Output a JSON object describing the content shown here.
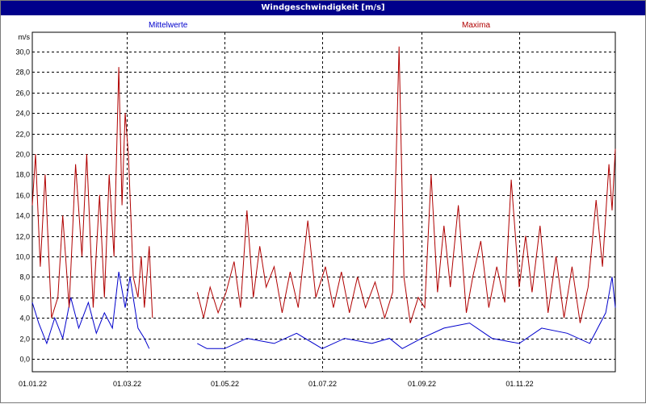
{
  "window": {
    "title": "Windgeschwindigkeit [m/s]"
  },
  "chart_data": {
    "type": "line",
    "title": "Windgeschwindigkeit [m/s]",
    "ylabel": "m/s",
    "ylim": [
      0,
      32
    ],
    "grid": true,
    "legend_placement": "top",
    "xlim": [
      "01.01.22",
      "31.12.22"
    ],
    "x_tick_labels": [
      "01.01.22",
      "01.03.22",
      "01.05.22",
      "01.07.22",
      "01.09.22",
      "01.11.22"
    ],
    "y_tick_labels": [
      "0,0",
      "2,0",
      "4,0",
      "6,0",
      "8,0",
      "10,0",
      "12,0",
      "14,0",
      "16,0",
      "18,0",
      "20,0",
      "22,0",
      "24,0",
      "26,0",
      "28,0",
      "30,0"
    ],
    "gap": [
      "18.03.22",
      "14.04.22"
    ],
    "series": [
      {
        "name": "Mittelwerte",
        "color": "#0000cc",
        "segments": [
          [
            [
              "01.01.22",
              5.5
            ],
            [
              "05.01.22",
              3.5
            ],
            [
              "10.01.22",
              1.5
            ],
            [
              "15.01.22",
              4.0
            ],
            [
              "20.01.22",
              2.0
            ],
            [
              "25.01.22",
              6.0
            ],
            [
              "30.01.22",
              3.0
            ],
            [
              "05.02.22",
              5.5
            ],
            [
              "10.02.22",
              2.5
            ],
            [
              "15.02.22",
              4.5
            ],
            [
              "20.02.22",
              3.0
            ],
            [
              "24.02.22",
              8.5
            ],
            [
              "28.02.22",
              5.0
            ],
            [
              "03.03.22",
              8.0
            ],
            [
              "08.03.22",
              3.0
            ],
            [
              "12.03.22",
              2.0
            ],
            [
              "15.03.22",
              1.0
            ]
          ],
          [
            [
              "14.04.22",
              1.5
            ],
            [
              "20.04.22",
              1.0
            ],
            [
              "01.05.22",
              1.0
            ],
            [
              "15.05.22",
              2.0
            ],
            [
              "01.06.22",
              1.5
            ],
            [
              "15.06.22",
              2.5
            ],
            [
              "01.07.22",
              1.0
            ],
            [
              "15.07.22",
              2.0
            ],
            [
              "01.08.22",
              1.5
            ],
            [
              "12.08.22",
              2.0
            ],
            [
              "20.08.22",
              1.0
            ],
            [
              "01.09.22",
              2.0
            ],
            [
              "15.09.22",
              3.0
            ],
            [
              "01.10.22",
              3.5
            ],
            [
              "15.10.22",
              2.0
            ],
            [
              "01.11.22",
              1.5
            ],
            [
              "15.11.22",
              3.0
            ],
            [
              "01.12.22",
              2.5
            ],
            [
              "15.12.22",
              1.5
            ],
            [
              "25.12.22",
              4.5
            ],
            [
              "29.12.22",
              8.0
            ],
            [
              "31.12.22",
              5.0
            ]
          ]
        ]
      },
      {
        "name": "Maxima",
        "color": "#b00000",
        "segments": [
          [
            [
              "01.01.22",
              15.0
            ],
            [
              "03.01.22",
              20.0
            ],
            [
              "06.01.22",
              9.0
            ],
            [
              "09.01.22",
              18.0
            ],
            [
              "13.01.22",
              4.0
            ],
            [
              "17.01.22",
              6.0
            ],
            [
              "20.01.22",
              14.0
            ],
            [
              "24.01.22",
              5.0
            ],
            [
              "28.01.22",
              19.0
            ],
            [
              "01.02.22",
              10.0
            ],
            [
              "04.02.22",
              20.0
            ],
            [
              "08.02.22",
              5.0
            ],
            [
              "12.02.22",
              16.0
            ],
            [
              "15.02.22",
              6.0
            ],
            [
              "18.02.22",
              18.0
            ],
            [
              "21.02.22",
              10.0
            ],
            [
              "24.02.22",
              28.5
            ],
            [
              "26.02.22",
              15.0
            ],
            [
              "28.02.22",
              24.0
            ],
            [
              "02.03.22",
              20.0
            ],
            [
              "05.03.22",
              8.0
            ],
            [
              "08.03.22",
              6.0
            ],
            [
              "10.03.22",
              10.0
            ],
            [
              "12.03.22",
              5.0
            ],
            [
              "15.03.22",
              11.0
            ],
            [
              "17.03.22",
              4.0
            ]
          ],
          [
            [
              "14.04.22",
              6.5
            ],
            [
              "18.04.22",
              4.0
            ],
            [
              "22.04.22",
              7.0
            ],
            [
              "27.04.22",
              4.5
            ],
            [
              "02.05.22",
              6.5
            ],
            [
              "07.05.22",
              9.5
            ],
            [
              "11.05.22",
              5.0
            ],
            [
              "15.05.22",
              14.5
            ],
            [
              "19.05.22",
              6.0
            ],
            [
              "23.05.22",
              11.0
            ],
            [
              "27.05.22",
              7.0
            ],
            [
              "01.06.22",
              9.0
            ],
            [
              "06.06.22",
              4.5
            ],
            [
              "11.06.22",
              8.5
            ],
            [
              "16.06.22",
              5.0
            ],
            [
              "22.06.22",
              13.5
            ],
            [
              "27.06.22",
              6.0
            ],
            [
              "03.07.22",
              9.0
            ],
            [
              "08.07.22",
              5.0
            ],
            [
              "13.07.22",
              8.5
            ],
            [
              "18.07.22",
              4.5
            ],
            [
              "23.07.22",
              8.0
            ],
            [
              "28.07.22",
              5.0
            ],
            [
              "03.08.22",
              7.5
            ],
            [
              "09.08.22",
              4.0
            ],
            [
              "14.08.22",
              6.5
            ],
            [
              "18.08.22",
              30.5
            ],
            [
              "21.08.22",
              8.0
            ],
            [
              "25.08.22",
              3.5
            ],
            [
              "30.08.22",
              6.0
            ],
            [
              "03.09.22",
              5.0
            ],
            [
              "07.09.22",
              18.0
            ],
            [
              "11.09.22",
              6.5
            ],
            [
              "15.09.22",
              13.0
            ],
            [
              "19.09.22",
              7.0
            ],
            [
              "24.09.22",
              15.0
            ],
            [
              "29.09.22",
              4.5
            ],
            [
              "03.10.22",
              8.0
            ],
            [
              "08.10.22",
              11.5
            ],
            [
              "13.10.22",
              5.0
            ],
            [
              "18.10.22",
              9.0
            ],
            [
              "23.10.22",
              5.5
            ],
            [
              "27.10.22",
              17.5
            ],
            [
              "01.11.22",
              7.0
            ],
            [
              "05.11.22",
              12.0
            ],
            [
              "09.11.22",
              6.5
            ],
            [
              "14.11.22",
              13.0
            ],
            [
              "19.11.22",
              4.5
            ],
            [
              "24.11.22",
              10.0
            ],
            [
              "29.11.22",
              4.0
            ],
            [
              "04.12.22",
              9.0
            ],
            [
              "09.12.22",
              3.5
            ],
            [
              "14.12.22",
              7.0
            ],
            [
              "19.12.22",
              15.5
            ],
            [
              "23.12.22",
              9.0
            ],
            [
              "27.12.22",
              19.0
            ],
            [
              "29.12.22",
              14.5
            ],
            [
              "31.12.22",
              20.5
            ]
          ]
        ]
      }
    ]
  }
}
